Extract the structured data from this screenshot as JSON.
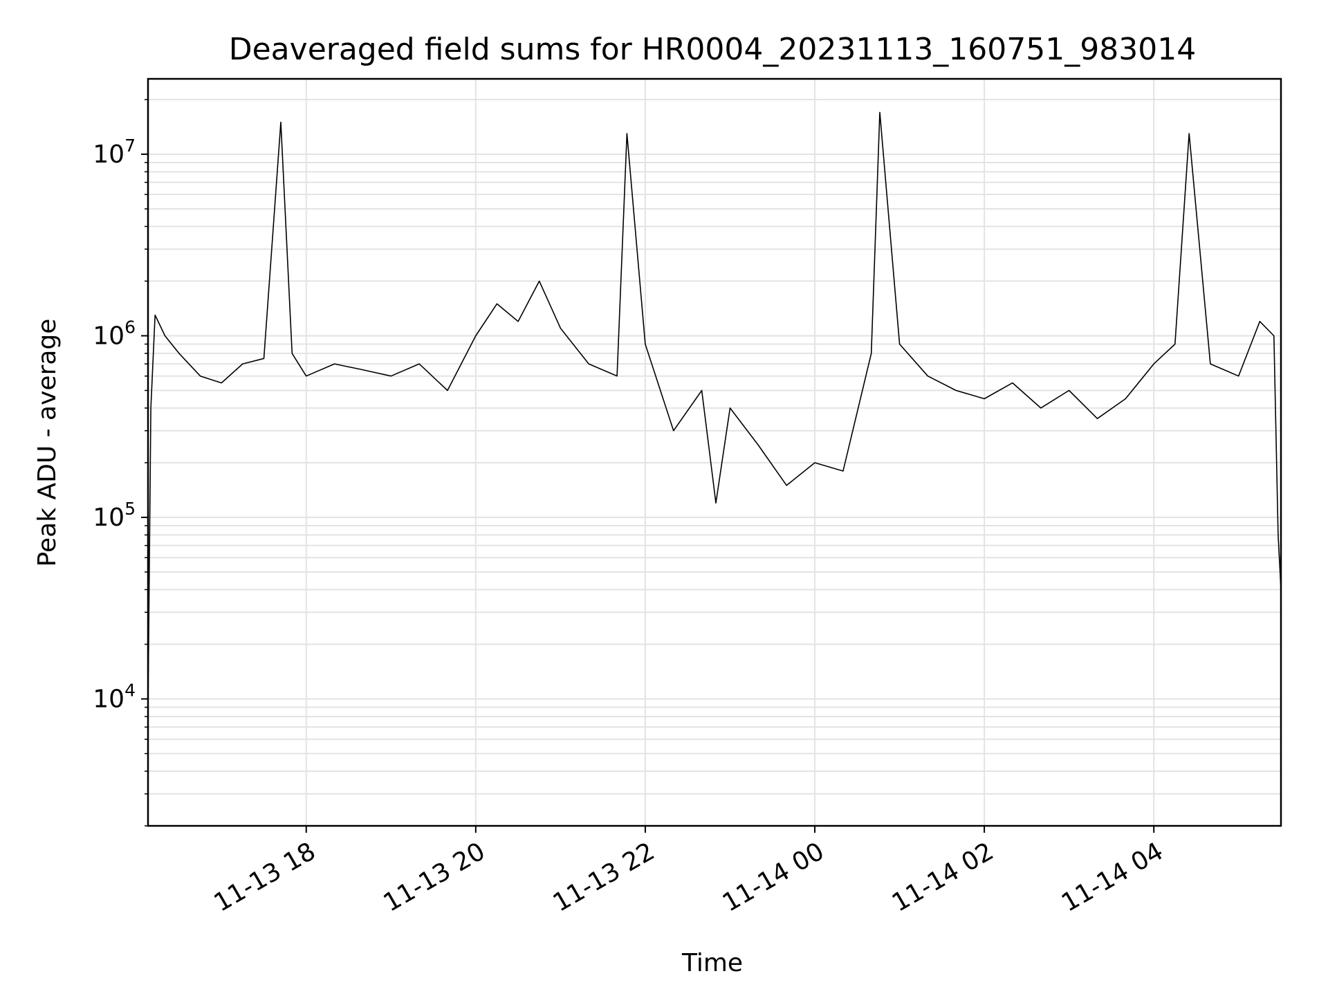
{
  "chart_data": {
    "type": "line",
    "title": "Deaveraged field sums for HR0004_20231113_160751_983014",
    "xlabel": "Time",
    "ylabel": "Peak ADU - average",
    "x_scale": "time",
    "y_scale": "log",
    "xlim": [
      "2023-11-13 16:08",
      "2023-11-14 05:30"
    ],
    "ylim": [
      2000,
      26000000
    ],
    "grid": true,
    "x_ticks": [
      {
        "value": "2023-11-13 18:00",
        "label": "11-13 18"
      },
      {
        "value": "2023-11-13 20:00",
        "label": "11-13 20"
      },
      {
        "value": "2023-11-13 22:00",
        "label": "11-13 22"
      },
      {
        "value": "2023-11-14 00:00",
        "label": "11-14 00"
      },
      {
        "value": "2023-11-14 02:00",
        "label": "11-14 02"
      },
      {
        "value": "2023-11-14 04:00",
        "label": "11-14 04"
      }
    ],
    "y_ticks": [
      {
        "value": 10000,
        "base": "10",
        "exp": "4"
      },
      {
        "value": 100000,
        "base": "10",
        "exp": "5"
      },
      {
        "value": 1000000,
        "base": "10",
        "exp": "6"
      },
      {
        "value": 10000000,
        "base": "10",
        "exp": "7"
      }
    ],
    "series": [
      {
        "color": "#000000",
        "points": [
          [
            "2023-11-13 16:08",
            9000
          ],
          [
            "2023-11-13 16:10",
            400000
          ],
          [
            "2023-11-13 16:13",
            1300000
          ],
          [
            "2023-11-13 16:20",
            1000000
          ],
          [
            "2023-11-13 16:30",
            800000
          ],
          [
            "2023-11-13 16:45",
            600000
          ],
          [
            "2023-11-13 17:00",
            550000
          ],
          [
            "2023-11-13 17:15",
            700000
          ],
          [
            "2023-11-13 17:30",
            750000
          ],
          [
            "2023-11-13 17:42",
            15000000
          ],
          [
            "2023-11-13 17:50",
            800000
          ],
          [
            "2023-11-13 18:00",
            600000
          ],
          [
            "2023-11-13 18:20",
            700000
          ],
          [
            "2023-11-13 18:40",
            650000
          ],
          [
            "2023-11-13 19:00",
            600000
          ],
          [
            "2023-11-13 19:20",
            700000
          ],
          [
            "2023-11-13 19:40",
            500000
          ],
          [
            "2023-11-13 20:00",
            1000000
          ],
          [
            "2023-11-13 20:15",
            1500000
          ],
          [
            "2023-11-13 20:30",
            1200000
          ],
          [
            "2023-11-13 20:45",
            2000000
          ],
          [
            "2023-11-13 21:00",
            1100000
          ],
          [
            "2023-11-13 21:20",
            700000
          ],
          [
            "2023-11-13 21:40",
            600000
          ],
          [
            "2023-11-13 21:47",
            13000000
          ],
          [
            "2023-11-13 22:00",
            900000
          ],
          [
            "2023-11-13 22:20",
            300000
          ],
          [
            "2023-11-13 22:40",
            500000
          ],
          [
            "2023-11-13 22:50",
            120000
          ],
          [
            "2023-11-13 23:00",
            400000
          ],
          [
            "2023-11-13 23:20",
            250000
          ],
          [
            "2023-11-13 23:40",
            150000
          ],
          [
            "2023-11-14 00:00",
            200000
          ],
          [
            "2023-11-14 00:20",
            180000
          ],
          [
            "2023-11-14 00:40",
            800000
          ],
          [
            "2023-11-14 00:46",
            17000000
          ],
          [
            "2023-11-14 01:00",
            900000
          ],
          [
            "2023-11-14 01:20",
            600000
          ],
          [
            "2023-11-14 01:40",
            500000
          ],
          [
            "2023-11-14 02:00",
            450000
          ],
          [
            "2023-11-14 02:20",
            550000
          ],
          [
            "2023-11-14 02:40",
            400000
          ],
          [
            "2023-11-14 03:00",
            500000
          ],
          [
            "2023-11-14 03:20",
            350000
          ],
          [
            "2023-11-14 03:40",
            450000
          ],
          [
            "2023-11-14 04:00",
            700000
          ],
          [
            "2023-11-14 04:15",
            900000
          ],
          [
            "2023-11-14 04:25",
            13000000
          ],
          [
            "2023-11-14 04:40",
            700000
          ],
          [
            "2023-11-14 05:00",
            600000
          ],
          [
            "2023-11-14 05:15",
            1200000
          ],
          [
            "2023-11-14 05:25",
            1000000
          ],
          [
            "2023-11-14 05:28",
            80000
          ],
          [
            "2023-11-14 05:30",
            40000
          ]
        ]
      }
    ]
  }
}
